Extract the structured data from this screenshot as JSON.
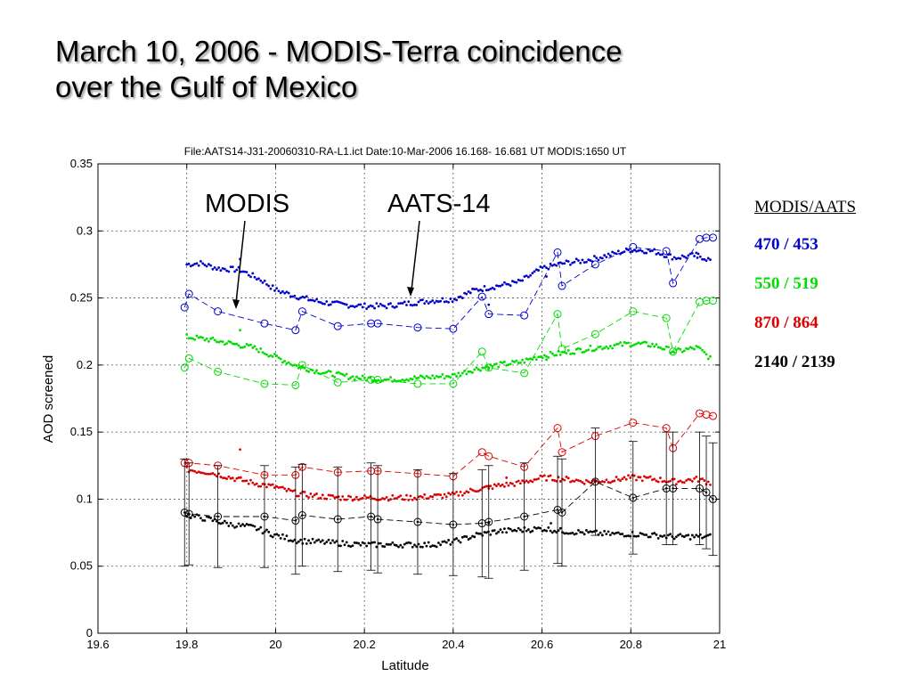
{
  "slide": {
    "title_line1": "March 10, 2006 - MODIS-Terra coincidence",
    "title_line2": "over the Gulf of Mexico"
  },
  "legend": {
    "header": "MODIS/AATS",
    "rows": [
      {
        "label": "470 / 453",
        "color": "#0000cc"
      },
      {
        "label": "550 / 519",
        "color": "#00dd00"
      },
      {
        "label": "870 / 864",
        "color": "#dd0000"
      },
      {
        "label": "2140 / 2139",
        "color": "#000000"
      }
    ]
  },
  "annotations": {
    "modis": "MODIS",
    "aats": "AATS-14"
  },
  "chart_data": {
    "type": "scatter",
    "title": "File:AATS14-J31-20060310-RA-L1.ict   Date:10-Mar-2006   16.168- 16.681 UT  MODIS:1650 UT",
    "xlabel": "Latitude",
    "ylabel": "AOD screened",
    "xlim": [
      19.6,
      21
    ],
    "ylim": [
      0,
      0.35
    ],
    "xticks": [
      "19.6",
      "19.8",
      "20",
      "20.2",
      "20.4",
      "20.6",
      "20.8",
      "21"
    ],
    "yticks": [
      "0",
      "0.05",
      "0.1",
      "0.15",
      "0.2",
      "0.25",
      "0.3",
      "0.35"
    ],
    "grid": true,
    "aats_series": [
      {
        "name": "470 / 453",
        "color": "#0000cc",
        "baseline": [
          [
            19.8,
            0.275
          ],
          [
            19.83,
            0.276
          ],
          [
            19.87,
            0.272
          ],
          [
            19.92,
            0.271
          ],
          [
            19.97,
            0.263
          ],
          [
            20.0,
            0.256
          ],
          [
            20.05,
            0.251
          ],
          [
            20.1,
            0.247
          ],
          [
            20.15,
            0.245
          ],
          [
            20.2,
            0.244
          ],
          [
            20.25,
            0.244
          ],
          [
            20.3,
            0.246
          ],
          [
            20.35,
            0.248
          ],
          [
            20.4,
            0.249
          ],
          [
            20.45,
            0.256
          ],
          [
            20.5,
            0.259
          ],
          [
            20.55,
            0.262
          ],
          [
            20.6,
            0.272
          ],
          [
            20.65,
            0.276
          ],
          [
            20.7,
            0.278
          ],
          [
            20.75,
            0.282
          ],
          [
            20.8,
            0.286
          ],
          [
            20.85,
            0.285
          ],
          [
            20.9,
            0.28
          ],
          [
            20.95,
            0.282
          ],
          [
            20.98,
            0.278
          ]
        ],
        "extras": [
          [
            19.92,
            0.279
          ],
          [
            20.48,
            0.245
          ],
          [
            20.61,
            0.266
          ],
          [
            20.95,
            0.28
          ]
        ]
      },
      {
        "name": "550 / 519",
        "color": "#00dd00",
        "baseline": [
          [
            19.8,
            0.221
          ],
          [
            19.85,
            0.219
          ],
          [
            19.9,
            0.216
          ],
          [
            19.95,
            0.213
          ],
          [
            20.0,
            0.206
          ],
          [
            20.05,
            0.199
          ],
          [
            20.1,
            0.195
          ],
          [
            20.15,
            0.192
          ],
          [
            20.2,
            0.19
          ],
          [
            20.25,
            0.189
          ],
          [
            20.3,
            0.19
          ],
          [
            20.35,
            0.191
          ],
          [
            20.4,
            0.192
          ],
          [
            20.45,
            0.197
          ],
          [
            20.5,
            0.2
          ],
          [
            20.55,
            0.202
          ],
          [
            20.6,
            0.207
          ],
          [
            20.65,
            0.209
          ],
          [
            20.7,
            0.212
          ],
          [
            20.75,
            0.214
          ],
          [
            20.8,
            0.216
          ],
          [
            20.85,
            0.215
          ],
          [
            20.9,
            0.21
          ],
          [
            20.95,
            0.213
          ],
          [
            20.98,
            0.205
          ]
        ],
        "extras": [
          [
            19.92,
            0.226
          ],
          [
            20.48,
            0.198
          ],
          [
            20.61,
            0.204
          ]
        ]
      },
      {
        "name": "870 / 864",
        "color": "#dd0000",
        "baseline": [
          [
            19.8,
            0.122
          ],
          [
            19.85,
            0.12
          ],
          [
            19.9,
            0.116
          ],
          [
            19.95,
            0.112
          ],
          [
            20.0,
            0.109
          ],
          [
            20.05,
            0.104
          ],
          [
            20.1,
            0.102
          ],
          [
            20.15,
            0.101
          ],
          [
            20.2,
            0.101
          ],
          [
            20.25,
            0.101
          ],
          [
            20.3,
            0.101
          ],
          [
            20.35,
            0.102
          ],
          [
            20.4,
            0.103
          ],
          [
            20.45,
            0.107
          ],
          [
            20.5,
            0.11
          ],
          [
            20.55,
            0.112
          ],
          [
            20.6,
            0.116
          ],
          [
            20.65,
            0.115
          ],
          [
            20.7,
            0.113
          ],
          [
            20.75,
            0.114
          ],
          [
            20.8,
            0.116
          ],
          [
            20.85,
            0.115
          ],
          [
            20.9,
            0.113
          ],
          [
            20.95,
            0.115
          ],
          [
            20.98,
            0.112
          ]
        ],
        "extras": [
          [
            19.92,
            0.137
          ],
          [
            20.48,
            0.108
          ],
          [
            20.52,
            0.116
          ]
        ]
      },
      {
        "name": "2140 / 2139",
        "color": "#000000",
        "baseline": [
          [
            19.8,
            0.088
          ],
          [
            19.85,
            0.085
          ],
          [
            19.9,
            0.081
          ],
          [
            19.95,
            0.079
          ],
          [
            20.0,
            0.073
          ],
          [
            20.05,
            0.069
          ],
          [
            20.1,
            0.068
          ],
          [
            20.15,
            0.067
          ],
          [
            20.2,
            0.066
          ],
          [
            20.25,
            0.066
          ],
          [
            20.3,
            0.066
          ],
          [
            20.35,
            0.066
          ],
          [
            20.4,
            0.068
          ],
          [
            20.45,
            0.073
          ],
          [
            20.5,
            0.076
          ],
          [
            20.55,
            0.077
          ],
          [
            20.6,
            0.078
          ],
          [
            20.65,
            0.076
          ],
          [
            20.7,
            0.075
          ],
          [
            20.75,
            0.074
          ],
          [
            20.8,
            0.074
          ],
          [
            20.85,
            0.073
          ],
          [
            20.9,
            0.072
          ],
          [
            20.95,
            0.072
          ],
          [
            20.98,
            0.072
          ]
        ],
        "extras": [
          [
            20.48,
            0.082
          ],
          [
            20.62,
            0.082
          ]
        ]
      }
    ],
    "modis_series": [
      {
        "name": "470 / 453",
        "color": "#0000cc",
        "points": [
          [
            19.795,
            0.243
          ],
          [
            19.805,
            0.253
          ],
          [
            19.87,
            0.24
          ],
          [
            19.975,
            0.231
          ],
          [
            20.045,
            0.226
          ],
          [
            20.06,
            0.24
          ],
          [
            20.14,
            0.229
          ],
          [
            20.215,
            0.231
          ],
          [
            20.23,
            0.231
          ],
          [
            20.32,
            0.228
          ],
          [
            20.4,
            0.227
          ],
          [
            20.465,
            0.251
          ],
          [
            20.48,
            0.238
          ],
          [
            20.56,
            0.237
          ],
          [
            20.635,
            0.284
          ],
          [
            20.645,
            0.259
          ],
          [
            20.72,
            0.275
          ],
          [
            20.805,
            0.288
          ],
          [
            20.88,
            0.285
          ],
          [
            20.895,
            0.261
          ],
          [
            20.955,
            0.294
          ],
          [
            20.97,
            0.295
          ],
          [
            20.985,
            0.295
          ]
        ]
      },
      {
        "name": "550 / 519",
        "color": "#00dd00",
        "points": [
          [
            19.795,
            0.198
          ],
          [
            19.805,
            0.205
          ],
          [
            19.87,
            0.195
          ],
          [
            19.975,
            0.186
          ],
          [
            20.045,
            0.185
          ],
          [
            20.06,
            0.2
          ],
          [
            20.14,
            0.187
          ],
          [
            20.215,
            0.189
          ],
          [
            20.23,
            0.189
          ],
          [
            20.32,
            0.186
          ],
          [
            20.4,
            0.186
          ],
          [
            20.465,
            0.21
          ],
          [
            20.48,
            0.198
          ],
          [
            20.56,
            0.194
          ],
          [
            20.635,
            0.238
          ],
          [
            20.645,
            0.212
          ],
          [
            20.72,
            0.223
          ],
          [
            20.805,
            0.24
          ],
          [
            20.88,
            0.235
          ],
          [
            20.895,
            0.21
          ],
          [
            20.955,
            0.247
          ],
          [
            20.97,
            0.248
          ],
          [
            20.985,
            0.248
          ]
        ]
      },
      {
        "name": "870 / 864",
        "color": "#dd0000",
        "points": [
          [
            19.795,
            0.127
          ],
          [
            19.805,
            0.127
          ],
          [
            19.87,
            0.125
          ],
          [
            19.975,
            0.118
          ],
          [
            20.045,
            0.118
          ],
          [
            20.06,
            0.124
          ],
          [
            20.14,
            0.12
          ],
          [
            20.215,
            0.121
          ],
          [
            20.23,
            0.121
          ],
          [
            20.32,
            0.119
          ],
          [
            20.4,
            0.117
          ],
          [
            20.465,
            0.135
          ],
          [
            20.48,
            0.132
          ],
          [
            20.56,
            0.124
          ],
          [
            20.635,
            0.153
          ],
          [
            20.645,
            0.135
          ],
          [
            20.72,
            0.147
          ],
          [
            20.805,
            0.157
          ],
          [
            20.88,
            0.153
          ],
          [
            20.895,
            0.138
          ],
          [
            20.955,
            0.164
          ],
          [
            20.97,
            0.163
          ],
          [
            20.985,
            0.162
          ]
        ]
      },
      {
        "name": "2140 / 2139",
        "color": "#000000",
        "points": [
          [
            19.795,
            0.09
          ],
          [
            19.805,
            0.089
          ],
          [
            19.87,
            0.087
          ],
          [
            19.975,
            0.087
          ],
          [
            20.045,
            0.084
          ],
          [
            20.06,
            0.088
          ],
          [
            20.14,
            0.085
          ],
          [
            20.215,
            0.087
          ],
          [
            20.23,
            0.085
          ],
          [
            20.32,
            0.083
          ],
          [
            20.4,
            0.081
          ],
          [
            20.465,
            0.082
          ],
          [
            20.48,
            0.083
          ],
          [
            20.56,
            0.087
          ],
          [
            20.635,
            0.092
          ],
          [
            20.645,
            0.09
          ],
          [
            20.72,
            0.113
          ],
          [
            20.805,
            0.101
          ],
          [
            20.88,
            0.108
          ],
          [
            20.895,
            0.108
          ],
          [
            20.955,
            0.108
          ],
          [
            20.97,
            0.105
          ],
          [
            20.985,
            0.1
          ]
        ],
        "errors": [
          [
            0.04,
            0.04
          ],
          [
            0.038,
            0.038
          ],
          [
            0.038,
            0.038
          ],
          [
            0.038,
            0.038
          ],
          [
            0.04,
            0.04
          ],
          [
            0.038,
            0.038
          ],
          [
            0.039,
            0.039
          ],
          [
            0.04,
            0.04
          ],
          [
            0.04,
            0.04
          ],
          [
            0.039,
            0.039
          ],
          [
            0.038,
            0.038
          ],
          [
            0.04,
            0.04
          ],
          [
            0.042,
            0.042
          ],
          [
            0.04,
            0.04
          ],
          [
            0.04,
            0.04
          ],
          [
            0.04,
            0.04
          ],
          [
            0.04,
            0.04
          ],
          [
            0.042,
            0.042
          ],
          [
            0.042,
            0.042
          ],
          [
            0.042,
            0.042
          ],
          [
            0.042,
            0.042
          ],
          [
            0.042,
            0.042
          ],
          [
            0.042,
            0.042
          ]
        ]
      }
    ]
  }
}
